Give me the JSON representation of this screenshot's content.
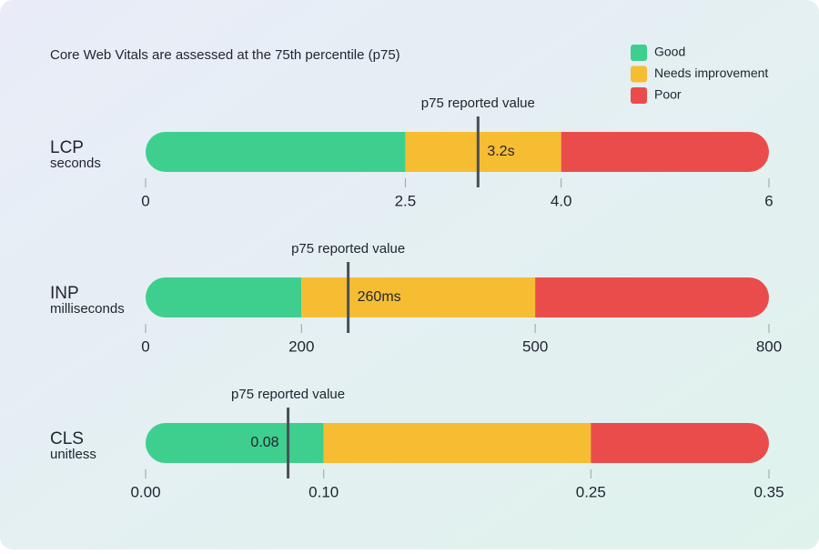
{
  "header": {
    "title": "Core Web Vitals are assessed at the 75th percentile (p75)"
  },
  "legend": [
    {
      "name": "Good",
      "color": "#3ecf8e"
    },
    {
      "name": "Needs improvement",
      "color": "#f6bd33"
    },
    {
      "name": "Poor",
      "color": "#ea4c4c"
    }
  ],
  "chart_data": [
    {
      "type": "range",
      "title": "LCP",
      "subtitle": "seconds",
      "xlim": [
        0,
        6
      ],
      "xticks": [
        0,
        2.5,
        {
          "value": 4,
          "label": "4.0"
        },
        6
      ],
      "values": [
        2.5,
        1.5,
        2
      ],
      "marker": {
        "label": "p75 reported value",
        "value": 3.2,
        "value_label": "3.2s"
      }
    },
    {
      "type": "range",
      "title": "INP",
      "subtitle": "milliseconds",
      "xlim": [
        0,
        800
      ],
      "xticks": [
        0,
        200,
        500,
        800
      ],
      "values": [
        200,
        300,
        300
      ],
      "marker": {
        "label": "p75 reported value",
        "value": 260,
        "value_label": "260ms"
      }
    },
    {
      "type": "range",
      "title": "CLS",
      "subtitle": "unitless",
      "xlim": [
        0,
        0.35
      ],
      "xticks": [
        {
          "value": 0,
          "label": "0.00"
        },
        {
          "value": 0.1,
          "label": "0.10"
        },
        {
          "value": 0.25,
          "label": "0.25"
        },
        0.35
      ],
      "values": [
        0.1,
        0.15,
        0.1
      ],
      "marker": {
        "label": "p75 reported value",
        "value": 0.08,
        "value_label": "0.08"
      }
    }
  ]
}
